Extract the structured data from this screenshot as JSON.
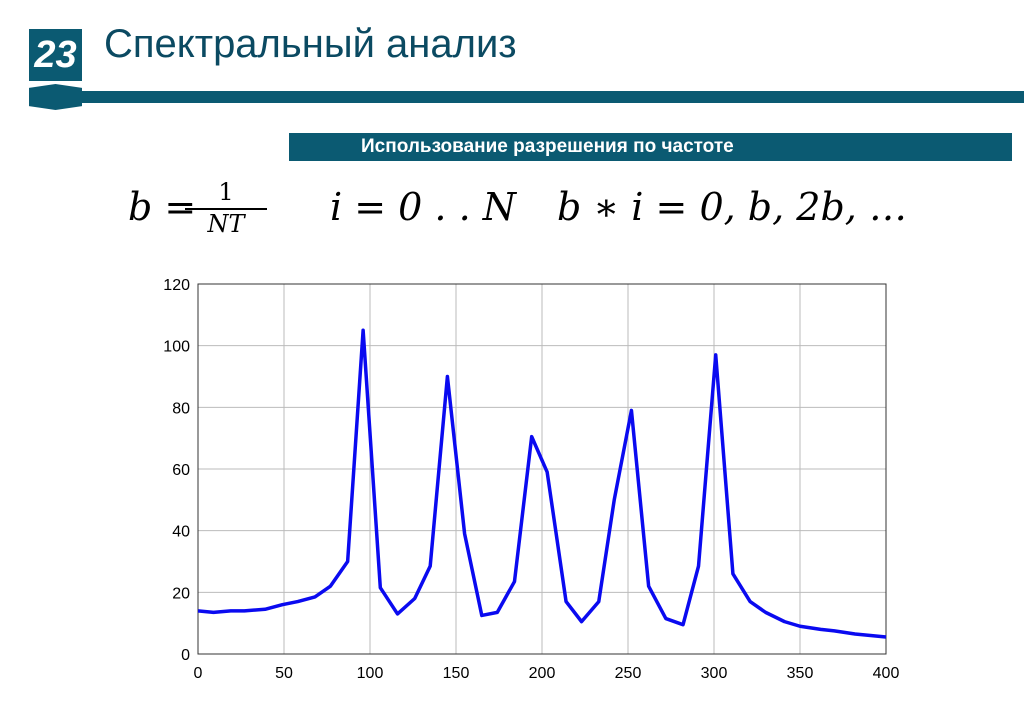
{
  "slide": {
    "number": "23",
    "title": "Спектральный анализ",
    "subtitle": "Использование разрешения по частоте",
    "accent": "#0b5a72"
  },
  "formulas": {
    "b_eq": "b =",
    "frac_num": "1",
    "frac_den": "NT",
    "i_range": "i = 0 . . N",
    "b_times_i": "b ∗ i = 0, b, 2b, …"
  },
  "chart_data": {
    "type": "line",
    "title": "",
    "xlabel": "",
    "ylabel": "",
    "xlim": [
      0,
      400
    ],
    "ylim": [
      0,
      120
    ],
    "grid": true,
    "xticks": [
      0,
      50,
      100,
      150,
      200,
      250,
      300,
      350,
      400
    ],
    "yticks": [
      0,
      20,
      40,
      60,
      80,
      100,
      120
    ],
    "line_color": "#0a0af0",
    "x": [
      0,
      9,
      19,
      27,
      39,
      49,
      58,
      68,
      77,
      87,
      96,
      106,
      116,
      126,
      135,
      145,
      155,
      165,
      174,
      184,
      194,
      203,
      214,
      223,
      233,
      242,
      252,
      262,
      272,
      282,
      291,
      301,
      311,
      321,
      330,
      341,
      350,
      362,
      370,
      382,
      400
    ],
    "y": [
      14,
      13.5,
      14,
      14,
      14.5,
      16,
      17,
      18.5,
      22,
      30,
      105,
      21.5,
      13,
      18,
      28.5,
      90,
      39,
      12.5,
      13.5,
      23.5,
      70.5,
      59,
      17,
      10.5,
      17,
      50,
      79,
      22,
      11.5,
      9.5,
      28.5,
      97,
      26,
      17,
      13.5,
      10.5,
      9,
      8,
      7.5,
      6.5,
      5.5
    ]
  }
}
